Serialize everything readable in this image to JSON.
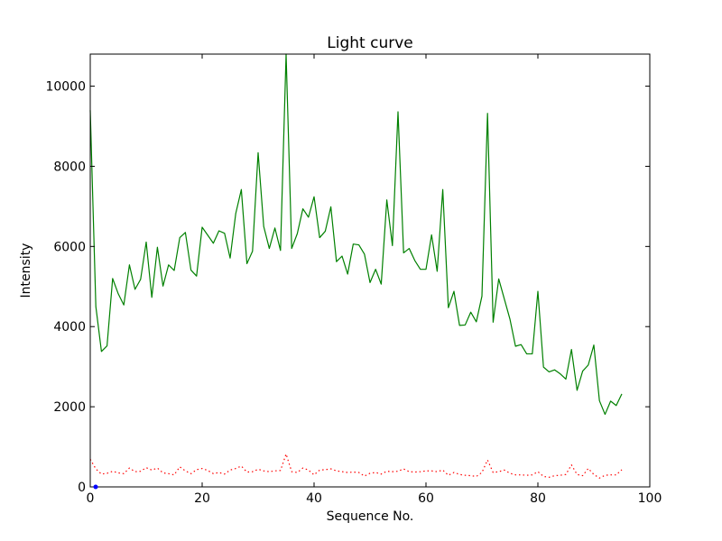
{
  "chart_data": {
    "type": "line",
    "title": "Light curve",
    "xlabel": "Sequence No.",
    "ylabel": "Intensity",
    "xlim": [
      0,
      100
    ],
    "ylim": [
      0,
      10800
    ],
    "xticks": [
      "0",
      "20",
      "40",
      "60",
      "80",
      "100"
    ],
    "yticks": [
      "0",
      "2000",
      "4000",
      "6000",
      "8000",
      "10000"
    ],
    "grid": false,
    "series": [
      {
        "color": "#008000",
        "style": "solid",
        "x": [
          0,
          1,
          2,
          3,
          4,
          5,
          6,
          7,
          8,
          9,
          10,
          11,
          12,
          13,
          14,
          15,
          16,
          17,
          18,
          19,
          20,
          21,
          22,
          23,
          24,
          25,
          26,
          27,
          28,
          29,
          30,
          31,
          32,
          33,
          34,
          35,
          36,
          37,
          38,
          39,
          40,
          41,
          42,
          43,
          44,
          45,
          46,
          47,
          48,
          49,
          50,
          51,
          52,
          53,
          54,
          55,
          56,
          57,
          58,
          59,
          60,
          61,
          62,
          63,
          64,
          65,
          66,
          67,
          68,
          69,
          70,
          71,
          72,
          73,
          74,
          75,
          76,
          77,
          78,
          79,
          80,
          81,
          82,
          83,
          84,
          85,
          86,
          87,
          88,
          89,
          90,
          91,
          92,
          93,
          94,
          95
        ],
        "values": [
          9400,
          4500,
          3380,
          3520,
          5200,
          4820,
          4540,
          5540,
          4930,
          5180,
          6110,
          4730,
          5980,
          5010,
          5540,
          5400,
          6220,
          6350,
          5410,
          5260,
          6480,
          6280,
          6080,
          6390,
          6330,
          5710,
          6820,
          7420,
          5570,
          5880,
          8340,
          6500,
          5950,
          6460,
          5900,
          10800,
          5950,
          6320,
          6940,
          6730,
          7240,
          6220,
          6380,
          6990,
          5620,
          5760,
          5310,
          6060,
          6040,
          5810,
          5100,
          5430,
          5060,
          7160,
          6020,
          9360,
          5840,
          5950,
          5650,
          5430,
          5430,
          6290,
          5380,
          7420,
          4470,
          4880,
          4030,
          4040,
          4360,
          4120,
          4760,
          9320,
          4110,
          5190,
          4690,
          4190,
          3510,
          3550,
          3320,
          3320,
          4880,
          2990,
          2870,
          2920,
          2820,
          2690,
          3430,
          2410,
          2890,
          3040,
          3540,
          2150,
          1810,
          2140,
          2030,
          2320
        ]
      },
      {
        "color": "#ff0000",
        "style": "dotted",
        "x": [
          0,
          1,
          2,
          3,
          4,
          5,
          6,
          7,
          8,
          9,
          10,
          11,
          12,
          13,
          14,
          15,
          16,
          17,
          18,
          19,
          20,
          21,
          22,
          23,
          24,
          25,
          26,
          27,
          28,
          29,
          30,
          31,
          32,
          33,
          34,
          35,
          36,
          37,
          38,
          39,
          40,
          41,
          42,
          43,
          44,
          45,
          46,
          47,
          48,
          49,
          50,
          51,
          52,
          53,
          54,
          55,
          56,
          57,
          58,
          59,
          60,
          61,
          62,
          63,
          64,
          65,
          66,
          67,
          68,
          69,
          70,
          71,
          72,
          73,
          74,
          75,
          76,
          77,
          78,
          79,
          80,
          81,
          82,
          83,
          84,
          85,
          86,
          87,
          88,
          89,
          90,
          91,
          92,
          93,
          94,
          95
        ],
        "values": [
          690,
          450,
          320,
          340,
          390,
          350,
          330,
          470,
          380,
          390,
          480,
          420,
          470,
          350,
          330,
          300,
          500,
          400,
          330,
          430,
          460,
          410,
          330,
          360,
          320,
          420,
          460,
          520,
          370,
          380,
          440,
          400,
          380,
          400,
          410,
          820,
          380,
          360,
          470,
          420,
          300,
          420,
          430,
          450,
          400,
          380,
          360,
          370,
          360,
          270,
          340,
          360,
          320,
          390,
          380,
          390,
          450,
          380,
          370,
          380,
          400,
          400,
          380,
          420,
          290,
          360,
          310,
          290,
          280,
          260,
          360,
          670,
          360,
          380,
          420,
          340,
          300,
          300,
          290,
          300,
          380,
          260,
          240,
          280,
          290,
          310,
          550,
          310,
          280,
          460,
          310,
          220,
          290,
          300,
          300,
          430
        ]
      }
    ]
  }
}
